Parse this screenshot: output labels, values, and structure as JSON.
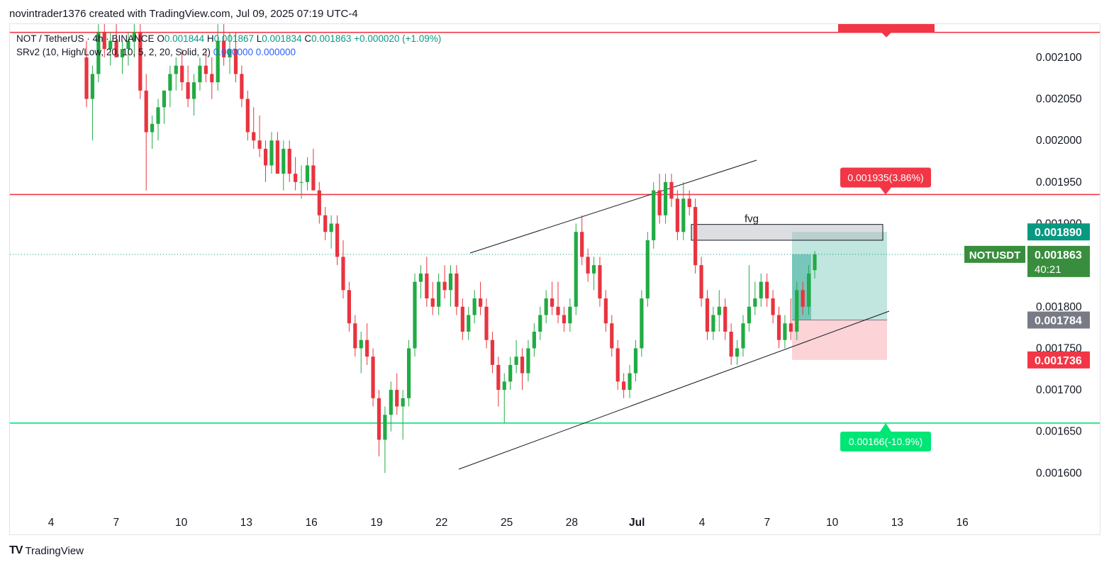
{
  "credit": "novintrader1376 created with TradingView.com, Jul 09, 2025 07:19 UTC-4",
  "legend": {
    "symbol": "NOT / TetherUS · 4h · BINANCE",
    "open_label": "O",
    "open": "0.001844",
    "high_label": "H",
    "high": "0.001867",
    "low_label": "L",
    "low": "0.001834",
    "close_label": "C",
    "close": "0.001863",
    "change": "+0.000020 (+1.09%)",
    "indicator": "SRv2 (10, High/Low, 20, 10, 5, 2, 20, Solid, 2)",
    "indicator_values": "0.000000  0.000000"
  },
  "footer": {
    "logo_mark": "TV",
    "logo_text": "TradingView"
  },
  "chart_data": {
    "type": "candlestick",
    "symbol": "NOTUSDT",
    "interval": "4h",
    "exchange": "BINANCE",
    "y_ticks": [
      "0.002100",
      "0.002050",
      "0.002000",
      "0.001950",
      "0.001900",
      "0.001800",
      "0.001750",
      "0.001700",
      "0.001650",
      "0.001600"
    ],
    "y_range": [
      0.00155,
      0.00214
    ],
    "x_ticks": [
      "4",
      "7",
      "10",
      "13",
      "16",
      "19",
      "22",
      "25",
      "28",
      "Jul",
      "4",
      "7",
      "10",
      "13",
      "16"
    ],
    "horizontal_levels": [
      {
        "price": 0.00213,
        "color": "#f23645"
      },
      {
        "price": 0.001935,
        "color": "#f23645",
        "label": "0.001935(3.86%)"
      },
      {
        "price": 0.00166,
        "color": "#00e676",
        "label": "0.00166(-10.9%)"
      }
    ],
    "fvg": {
      "label": "fvg",
      "top": 0.001899,
      "bottom": 0.00188
    },
    "position": {
      "target": 0.00189,
      "entry": 0.001784,
      "stop": 0.001736
    },
    "price_labels": {
      "target": "0.001890",
      "symbol_tag": "NOTUSDT",
      "last_price": "0.001863",
      "countdown": "40:21",
      "entry": "0.001784",
      "stop": "0.001736"
    },
    "last_price": 0.001863,
    "colors": {
      "up": "#089981",
      "down": "#f23645",
      "up_candle": "#22ab44",
      "down_candle": "#e8343f"
    },
    "candles": [
      [
        0.0021,
        0.00212,
        0.00204,
        0.00205
      ],
      [
        0.00205,
        0.00209,
        0.002,
        0.00208
      ],
      [
        0.00208,
        0.00214,
        0.00207,
        0.00213
      ],
      [
        0.00213,
        0.00214,
        0.0021,
        0.00211
      ],
      [
        0.00211,
        0.00213,
        0.00209,
        0.00212
      ],
      [
        0.00212,
        0.00214,
        0.0021,
        0.0021
      ],
      [
        0.0021,
        0.00212,
        0.00208,
        0.00211
      ],
      [
        0.00211,
        0.00213,
        0.00209,
        0.00212
      ],
      [
        0.00212,
        0.00214,
        0.0021,
        0.00213
      ],
      [
        0.00213,
        0.00214,
        0.00205,
        0.00206
      ],
      [
        0.00206,
        0.00208,
        0.00194,
        0.00201
      ],
      [
        0.00201,
        0.00203,
        0.00199,
        0.00202
      ],
      [
        0.00202,
        0.00205,
        0.002,
        0.00204
      ],
      [
        0.00204,
        0.00206,
        0.00202,
        0.00206
      ],
      [
        0.00206,
        0.00209,
        0.00204,
        0.00208
      ],
      [
        0.00208,
        0.0021,
        0.00206,
        0.00209
      ],
      [
        0.00209,
        0.00211,
        0.00206,
        0.00207
      ],
      [
        0.00207,
        0.00209,
        0.00204,
        0.00205
      ],
      [
        0.00205,
        0.00208,
        0.00203,
        0.00207
      ],
      [
        0.00207,
        0.0021,
        0.00206,
        0.00209
      ],
      [
        0.00209,
        0.00211,
        0.00207,
        0.00208
      ],
      [
        0.00208,
        0.0021,
        0.00205,
        0.00207
      ],
      [
        0.00207,
        0.00214,
        0.00206,
        0.00212
      ],
      [
        0.00212,
        0.00214,
        0.00209,
        0.0021
      ],
      [
        0.0021,
        0.00213,
        0.00208,
        0.00211
      ],
      [
        0.00211,
        0.00213,
        0.00207,
        0.00208
      ],
      [
        0.00208,
        0.00209,
        0.00204,
        0.00205
      ],
      [
        0.00205,
        0.00206,
        0.002,
        0.00201
      ],
      [
        0.00201,
        0.00204,
        0.00199,
        0.002
      ],
      [
        0.002,
        0.00203,
        0.00198,
        0.00199
      ],
      [
        0.00199,
        0.002,
        0.00195,
        0.00197
      ],
      [
        0.00197,
        0.00201,
        0.00196,
        0.002
      ],
      [
        0.002,
        0.00201,
        0.00196,
        0.00196
      ],
      [
        0.00196,
        0.002,
        0.00194,
        0.00199
      ],
      [
        0.00199,
        0.002,
        0.00195,
        0.00196
      ],
      [
        0.00196,
        0.00198,
        0.00194,
        0.00195
      ],
      [
        0.00195,
        0.00197,
        0.00193,
        0.00195
      ],
      [
        0.00195,
        0.00198,
        0.00194,
        0.00197
      ],
      [
        0.00197,
        0.00199,
        0.00194,
        0.00194
      ],
      [
        0.00194,
        0.00195,
        0.0019,
        0.00191
      ],
      [
        0.00191,
        0.00192,
        0.00188,
        0.00189
      ],
      [
        0.00189,
        0.00191,
        0.00187,
        0.0019
      ],
      [
        0.0019,
        0.00191,
        0.00185,
        0.00186
      ],
      [
        0.00186,
        0.00188,
        0.00181,
        0.00182
      ],
      [
        0.00182,
        0.00183,
        0.00177,
        0.00178
      ],
      [
        0.00178,
        0.00179,
        0.00174,
        0.00175
      ],
      [
        0.00175,
        0.00177,
        0.00172,
        0.00176
      ],
      [
        0.00176,
        0.00178,
        0.00173,
        0.00174
      ],
      [
        0.00174,
        0.00175,
        0.00168,
        0.00169
      ],
      [
        0.00169,
        0.0017,
        0.00162,
        0.00164
      ],
      [
        0.00164,
        0.00168,
        0.0016,
        0.00167
      ],
      [
        0.00167,
        0.00171,
        0.00165,
        0.0017
      ],
      [
        0.0017,
        0.00172,
        0.00167,
        0.00168
      ],
      [
        0.00168,
        0.0017,
        0.00164,
        0.00169
      ],
      [
        0.00169,
        0.00176,
        0.00168,
        0.00175
      ],
      [
        0.00175,
        0.00184,
        0.00174,
        0.00183
      ],
      [
        0.00183,
        0.00185,
        0.00181,
        0.00184
      ],
      [
        0.00184,
        0.00186,
        0.0018,
        0.00181
      ],
      [
        0.00181,
        0.00183,
        0.00179,
        0.0018
      ],
      [
        0.0018,
        0.00184,
        0.00179,
        0.00183
      ],
      [
        0.00183,
        0.00185,
        0.00181,
        0.00182
      ],
      [
        0.00182,
        0.00185,
        0.0018,
        0.00184
      ],
      [
        0.00184,
        0.00185,
        0.00179,
        0.0018
      ],
      [
        0.0018,
        0.00181,
        0.00176,
        0.00177
      ],
      [
        0.00177,
        0.0018,
        0.00176,
        0.00179
      ],
      [
        0.00179,
        0.00182,
        0.00178,
        0.00181
      ],
      [
        0.00181,
        0.00183,
        0.00179,
        0.0018
      ],
      [
        0.0018,
        0.00181,
        0.00175,
        0.00176
      ],
      [
        0.00176,
        0.00177,
        0.00172,
        0.00173
      ],
      [
        0.00173,
        0.00174,
        0.00168,
        0.0017
      ],
      [
        0.0017,
        0.00172,
        0.00166,
        0.00171
      ],
      [
        0.00171,
        0.00174,
        0.0017,
        0.00173
      ],
      [
        0.00173,
        0.00176,
        0.00172,
        0.00174
      ],
      [
        0.00174,
        0.00175,
        0.0017,
        0.00172
      ],
      [
        0.00172,
        0.00176,
        0.00171,
        0.00175
      ],
      [
        0.00175,
        0.00178,
        0.00174,
        0.00177
      ],
      [
        0.00177,
        0.0018,
        0.00176,
        0.00179
      ],
      [
        0.00179,
        0.00182,
        0.00178,
        0.00181
      ],
      [
        0.00181,
        0.00183,
        0.00179,
        0.0018
      ],
      [
        0.0018,
        0.00183,
        0.00178,
        0.00179
      ],
      [
        0.00179,
        0.0018,
        0.00177,
        0.00178
      ],
      [
        0.00178,
        0.00181,
        0.00177,
        0.0018
      ],
      [
        0.0018,
        0.0019,
        0.00179,
        0.00189
      ],
      [
        0.00189,
        0.00191,
        0.00185,
        0.00186
      ],
      [
        0.00186,
        0.00187,
        0.00183,
        0.00184
      ],
      [
        0.00184,
        0.00186,
        0.00182,
        0.00185
      ],
      [
        0.00185,
        0.00186,
        0.0018,
        0.00181
      ],
      [
        0.00181,
        0.00182,
        0.00177,
        0.00178
      ],
      [
        0.00178,
        0.00179,
        0.00174,
        0.00175
      ],
      [
        0.00175,
        0.00176,
        0.0017,
        0.00171
      ],
      [
        0.00171,
        0.00172,
        0.00169,
        0.0017
      ],
      [
        0.0017,
        0.00173,
        0.00169,
        0.00172
      ],
      [
        0.00172,
        0.00176,
        0.00171,
        0.00175
      ],
      [
        0.00175,
        0.00182,
        0.00174,
        0.00181
      ],
      [
        0.00181,
        0.00189,
        0.0018,
        0.00188
      ],
      [
        0.00188,
        0.00195,
        0.00187,
        0.00194
      ],
      [
        0.00194,
        0.00196,
        0.0019,
        0.00191
      ],
      [
        0.00191,
        0.00196,
        0.0019,
        0.00195
      ],
      [
        0.00195,
        0.00196,
        0.00192,
        0.00193
      ],
      [
        0.00193,
        0.00194,
        0.00188,
        0.00189
      ],
      [
        0.00189,
        0.00195,
        0.00188,
        0.00193
      ],
      [
        0.00193,
        0.00194,
        0.00191,
        0.00192
      ],
      [
        0.00192,
        0.00193,
        0.00184,
        0.00185
      ],
      [
        0.00185,
        0.00186,
        0.0018,
        0.00181
      ],
      [
        0.00181,
        0.00182,
        0.00176,
        0.00177
      ],
      [
        0.00177,
        0.0018,
        0.00176,
        0.00179
      ],
      [
        0.00179,
        0.00182,
        0.00177,
        0.0018
      ],
      [
        0.0018,
        0.00181,
        0.00176,
        0.00177
      ],
      [
        0.00177,
        0.00178,
        0.00173,
        0.00174
      ],
      [
        0.00174,
        0.00176,
        0.00173,
        0.00175
      ],
      [
        0.00175,
        0.00179,
        0.00174,
        0.00178
      ],
      [
        0.00178,
        0.00185,
        0.00177,
        0.0018
      ],
      [
        0.0018,
        0.00183,
        0.00179,
        0.00181
      ],
      [
        0.00181,
        0.00184,
        0.0018,
        0.00183
      ],
      [
        0.00183,
        0.00184,
        0.0018,
        0.00181
      ],
      [
        0.00181,
        0.00182,
        0.00178,
        0.00179
      ],
      [
        0.00179,
        0.0018,
        0.00175,
        0.00176
      ],
      [
        0.00176,
        0.00179,
        0.00175,
        0.00178
      ],
      [
        0.00178,
        0.00181,
        0.00176,
        0.00177
      ],
      [
        0.00177,
        0.00183,
        0.00176,
        0.00182
      ],
      [
        0.00182,
        0.00183,
        0.00179,
        0.0018
      ],
      [
        0.0018,
        0.00185,
        0.00179,
        0.00184
      ],
      [
        0.001844,
        0.001867,
        0.001834,
        0.001863
      ]
    ]
  }
}
